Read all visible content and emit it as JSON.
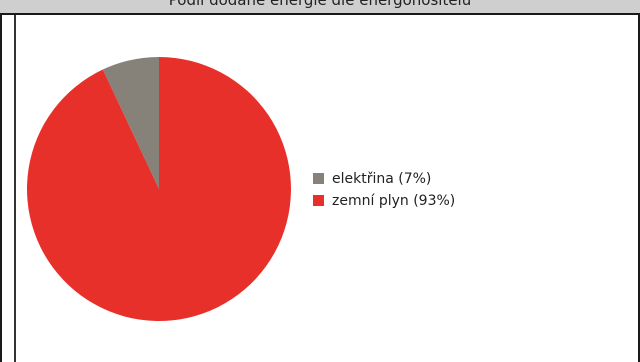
{
  "header": {
    "title": "Podíl dodané energie dle energonositelů"
  },
  "chart_data": {
    "type": "pie",
    "title": "Podíl dodané energie dle energonositelů",
    "categories": [
      "elektřina",
      "zemní plyn"
    ],
    "values": [
      7,
      93
    ],
    "unit": "%",
    "colors": [
      "#86827a",
      "#e8302a"
    ],
    "legend_labels": [
      "elektřina (7%)",
      "zemní plyn (93%)"
    ],
    "legend_position": "right"
  }
}
